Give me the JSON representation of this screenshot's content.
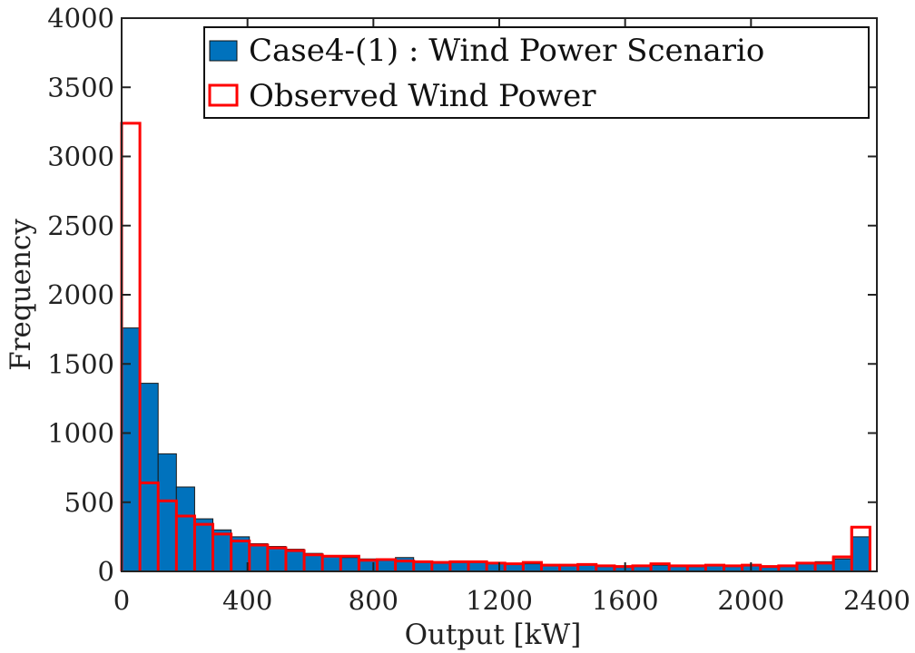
{
  "chart_data": {
    "type": "bar",
    "xlabel": "Output [kW]",
    "ylabel": "Frequency",
    "xlim": [
      0,
      2400
    ],
    "ylim": [
      0,
      4000
    ],
    "xticks": [
      0,
      400,
      800,
      1200,
      1600,
      2000,
      2400
    ],
    "yticks": [
      0,
      500,
      1000,
      1500,
      2000,
      2500,
      3000,
      3500,
      4000
    ],
    "grid": false,
    "legend_position": "top-right",
    "bin_edges": [
      0,
      58,
      116,
      174,
      232,
      290,
      348,
      406,
      464,
      522,
      580,
      638,
      696,
      754,
      812,
      870,
      928,
      986,
      1044,
      1102,
      1160,
      1218,
      1276,
      1334,
      1392,
      1450,
      1508,
      1566,
      1624,
      1682,
      1740,
      1798,
      1856,
      1914,
      1972,
      2030,
      2088,
      2146,
      2204,
      2262,
      2320,
      2378
    ],
    "series": [
      {
        "name": "Case4-(1) : Wind Power Scenario",
        "style": "filled",
        "color": "#0072BD",
        "values": [
          1760,
          1360,
          850,
          610,
          380,
          300,
          250,
          200,
          180,
          160,
          130,
          110,
          100,
          90,
          80,
          100,
          75,
          70,
          65,
          65,
          60,
          55,
          55,
          50,
          50,
          45,
          45,
          40,
          40,
          45,
          40,
          35,
          40,
          40,
          45,
          40,
          45,
          55,
          70,
          90,
          250
        ]
      },
      {
        "name": "Observed Wind Power",
        "style": "outline",
        "color": "#FF0000",
        "values": [
          3240,
          640,
          510,
          400,
          340,
          270,
          220,
          190,
          170,
          150,
          120,
          110,
          110,
          80,
          85,
          75,
          70,
          65,
          70,
          70,
          60,
          55,
          65,
          45,
          45,
          50,
          40,
          35,
          40,
          55,
          40,
          40,
          45,
          40,
          45,
          35,
          40,
          60,
          60,
          105,
          320
        ]
      }
    ]
  }
}
